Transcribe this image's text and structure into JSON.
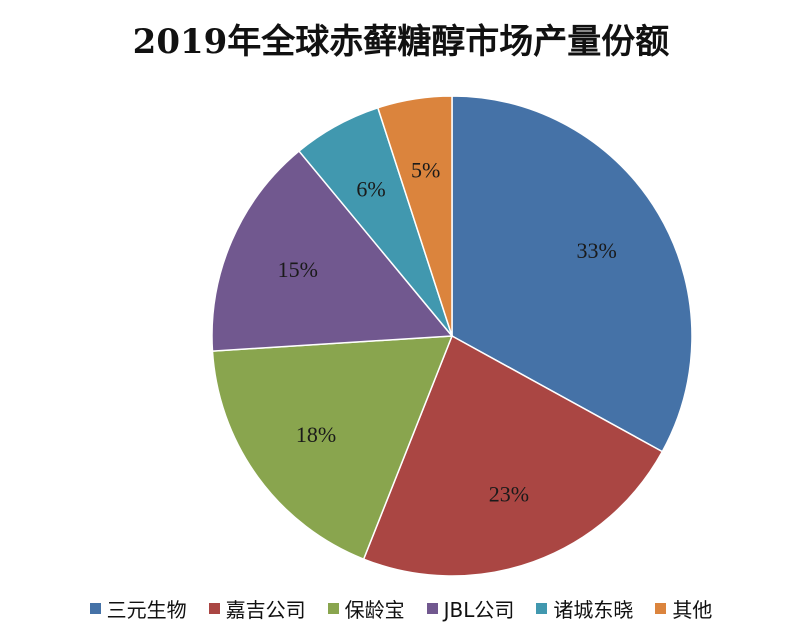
{
  "chart_data": {
    "type": "pie",
    "title": "2019年全球赤藓糖醇市场产量份额",
    "categories": [
      "三元生物",
      "嘉吉公司",
      "保龄宝",
      "JBL公司",
      "诸城东晓",
      "其他"
    ],
    "values": [
      33,
      23,
      18,
      15,
      6,
      5
    ],
    "labels": [
      "33%",
      "23%",
      "18%",
      "15%",
      "6%",
      "5%"
    ],
    "colors": [
      "#4572A7",
      "#AA4643",
      "#89A54E",
      "#71588F",
      "#4198AF",
      "#DB843D"
    ],
    "legend_position": "bottom",
    "start_angle": "12 o'clock, clockwise"
  }
}
